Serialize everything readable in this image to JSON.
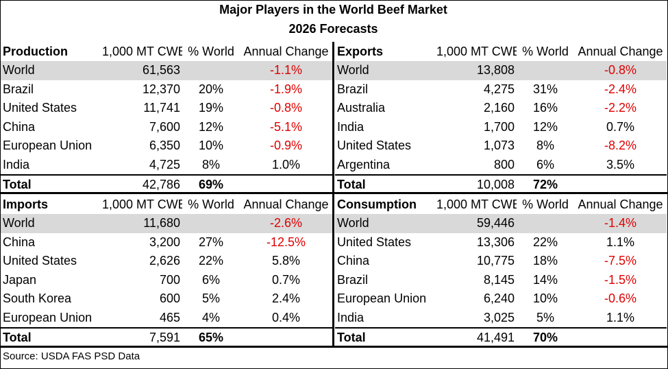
{
  "title": "Major Players in the World Beef Market",
  "subtitle": "2026 Forecasts",
  "source": "Source: USDA FAS PSD Data",
  "columns": {
    "volume": "1,000 MT CWE",
    "share": "% World",
    "change": "Annual Change"
  },
  "chart_data": {
    "type": "table",
    "title": "Major Players in the World Beef Market",
    "subtitle": "2026 Forecasts",
    "panels": [
      {
        "name": "Production",
        "rows": [
          {
            "label": "World",
            "volume": "61,563",
            "share": "",
            "change": "-1.1%"
          },
          {
            "label": "Brazil",
            "volume": "12,370",
            "share": "20%",
            "change": "-1.9%"
          },
          {
            "label": "United States",
            "volume": "11,741",
            "share": "19%",
            "change": "-0.8%"
          },
          {
            "label": "China",
            "volume": "7,600",
            "share": "12%",
            "change": "-5.1%"
          },
          {
            "label": "European Union",
            "volume": "6,350",
            "share": "10%",
            "change": "-0.9%"
          },
          {
            "label": "India",
            "volume": "4,725",
            "share": "8%",
            "change": "1.0%"
          }
        ],
        "total": {
          "label": "Total",
          "volume": "42,786",
          "share": "69%",
          "change": ""
        }
      },
      {
        "name": "Exports",
        "rows": [
          {
            "label": "World",
            "volume": "13,808",
            "share": "",
            "change": "-0.8%"
          },
          {
            "label": "Brazil",
            "volume": "4,275",
            "share": "31%",
            "change": "-2.4%"
          },
          {
            "label": "Australia",
            "volume": "2,160",
            "share": "16%",
            "change": "-2.2%"
          },
          {
            "label": "India",
            "volume": "1,700",
            "share": "12%",
            "change": "0.7%"
          },
          {
            "label": "United States",
            "volume": "1,073",
            "share": "8%",
            "change": "-8.2%"
          },
          {
            "label": "Argentina",
            "volume": "800",
            "share": "6%",
            "change": "3.5%"
          }
        ],
        "total": {
          "label": "Total",
          "volume": "10,008",
          "share": "72%",
          "change": ""
        }
      },
      {
        "name": "Imports",
        "rows": [
          {
            "label": "World",
            "volume": "11,680",
            "share": "",
            "change": "-2.6%"
          },
          {
            "label": "China",
            "volume": "3,200",
            "share": "27%",
            "change": "-12.5%"
          },
          {
            "label": "United States",
            "volume": "2,626",
            "share": "22%",
            "change": "5.8%"
          },
          {
            "label": "Japan",
            "volume": "700",
            "share": "6%",
            "change": "0.7%"
          },
          {
            "label": "South Korea",
            "volume": "600",
            "share": "5%",
            "change": "2.4%"
          },
          {
            "label": "European Union",
            "volume": "465",
            "share": "4%",
            "change": "0.4%"
          }
        ],
        "total": {
          "label": "Total",
          "volume": "7,591",
          "share": "65%",
          "change": ""
        }
      },
      {
        "name": "Consumption",
        "rows": [
          {
            "label": "World",
            "volume": "59,446",
            "share": "",
            "change": "-1.4%"
          },
          {
            "label": "United States",
            "volume": "13,306",
            "share": "22%",
            "change": "1.1%"
          },
          {
            "label": "China",
            "volume": "10,775",
            "share": "18%",
            "change": "-7.5%"
          },
          {
            "label": "Brazil",
            "volume": "8,145",
            "share": "14%",
            "change": "-1.5%"
          },
          {
            "label": "European Union",
            "volume": "6,240",
            "share": "10%",
            "change": "-0.6%"
          },
          {
            "label": "India",
            "volume": "3,025",
            "share": "5%",
            "change": "1.1%"
          }
        ],
        "total": {
          "label": "Total",
          "volume": "41,491",
          "share": "70%",
          "change": ""
        }
      }
    ]
  },
  "colors": {
    "negative": "#e00000",
    "world_row_bg": "#d9d9d9"
  }
}
